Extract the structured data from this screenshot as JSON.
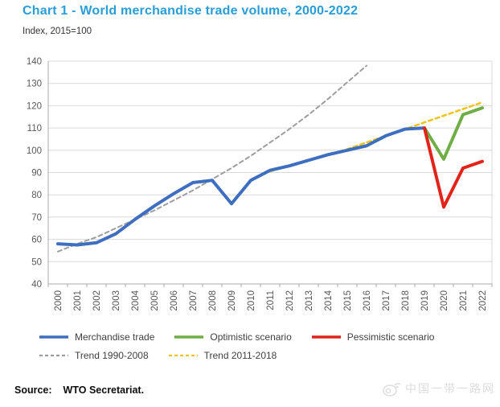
{
  "header": {
    "title": "Chart 1 - World merchandise trade volume, 2000-2022",
    "subtitle": "Index, 2015=100",
    "title_color": "#299dd8"
  },
  "source": {
    "label": "Source:",
    "text": "WTO Secretariat."
  },
  "watermark": {
    "icon": "weibo-icon",
    "text": "中国一带一路网",
    "color": "#dcdcdc"
  },
  "colors": {
    "gridline": "#d9d9d9",
    "axis": "#ababab",
    "tick_text": "#595959",
    "legend_text": "#404040"
  },
  "legend_rows": [
    [
      0,
      1,
      2
    ],
    [
      3,
      4
    ]
  ],
  "chart_data": {
    "type": "line",
    "title": "Chart 1 - World merchandise trade volume, 2000-2022",
    "subtitle": "Index, 2015=100",
    "x": [
      2000,
      2001,
      2002,
      2003,
      2004,
      2005,
      2006,
      2007,
      2008,
      2009,
      2010,
      2011,
      2012,
      2013,
      2014,
      2015,
      2016,
      2017,
      2018,
      2019,
      2020,
      2021,
      2022
    ],
    "ylim": [
      40,
      140
    ],
    "ytick_step": 10,
    "grid": true,
    "legend_position": "bottom",
    "draw_order": [
      3,
      4,
      0,
      1,
      2
    ],
    "series": [
      {
        "name": "Merchandise trade",
        "color": "#3d6ebf",
        "style": "solid",
        "width": 4,
        "x": [
          2000,
          2001,
          2002,
          2003,
          2004,
          2005,
          2006,
          2007,
          2008,
          2009,
          2010,
          2011,
          2012,
          2013,
          2014,
          2015,
          2016,
          2017,
          2018,
          2019
        ],
        "values": [
          58,
          57.5,
          58.5,
          62.5,
          69,
          75,
          80.5,
          85.5,
          86.5,
          76,
          86.5,
          91,
          93,
          95.5,
          98,
          100,
          102,
          106.5,
          109.5,
          110
        ]
      },
      {
        "name": "Optimistic scenario",
        "color": "#6fad46",
        "style": "solid",
        "width": 4,
        "x": [
          2019,
          2020,
          2021,
          2022
        ],
        "values": [
          110,
          96,
          116,
          119
        ]
      },
      {
        "name": "Pessimistic scenario",
        "color": "#e2231a",
        "style": "solid",
        "width": 4,
        "x": [
          2019,
          2020,
          2021,
          2022
        ],
        "values": [
          110,
          74.5,
          92,
          95
        ]
      },
      {
        "name": "Trend 1990-2008",
        "color": "#9e9e9e",
        "style": "dashed",
        "width": 2,
        "x": [
          2000,
          2001,
          2002,
          2003,
          2004,
          2005,
          2006,
          2007,
          2008,
          2009,
          2010,
          2011,
          2012,
          2013,
          2014,
          2015,
          2016
        ],
        "values": [
          54.5,
          58,
          61,
          65,
          69,
          73,
          77.5,
          82,
          87,
          92,
          97.5,
          103.5,
          109.5,
          116,
          123,
          130.5,
          138
        ]
      },
      {
        "name": "Trend 2011-2018",
        "color": "#efc319",
        "style": "dashed",
        "width": 2.5,
        "x": [
          2011,
          2012,
          2013,
          2014,
          2015,
          2016,
          2017,
          2018,
          2019,
          2020,
          2021,
          2022
        ],
        "values": [
          90.5,
          93,
          95.5,
          98,
          100.5,
          103.5,
          106.5,
          109.5,
          112.5,
          115.5,
          118.5,
          121.5
        ]
      }
    ]
  }
}
